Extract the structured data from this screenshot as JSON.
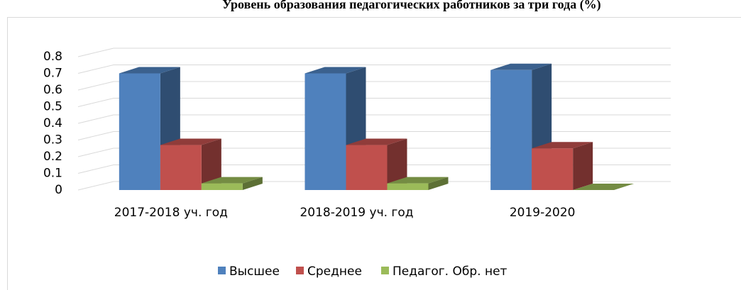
{
  "chart_data": {
    "type": "bar3d",
    "title": "Уровень образования педагогических работников за три года (%)",
    "categories": [
      "2017-2018 уч. год",
      "2018-2019 уч. год",
      "2019-2020"
    ],
    "series": [
      {
        "name": "Высшее",
        "color": "#4f81bd",
        "values": [
          0.7,
          0.7,
          0.72
        ]
      },
      {
        "name": "Среднее",
        "color": "#c0504d",
        "values": [
          0.27,
          0.27,
          0.25
        ]
      },
      {
        "name": "Педагог. Обр. нет",
        "color": "#9bbb59",
        "values": [
          0.04,
          0.04,
          0
        ]
      }
    ],
    "ylim": [
      0,
      0.8
    ],
    "yticks": [
      0,
      0.1,
      0.2,
      0.3,
      0.4,
      0.5,
      0.6,
      0.7,
      0.8
    ],
    "grid": true,
    "legend": "bottom"
  }
}
